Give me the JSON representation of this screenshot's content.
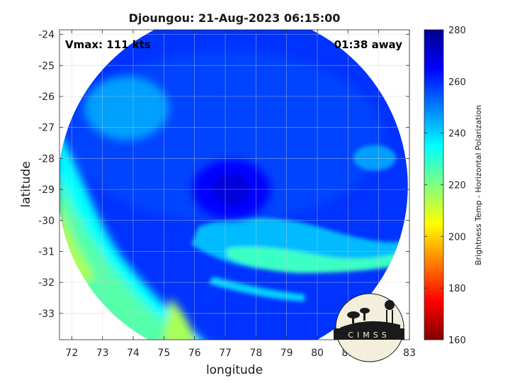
{
  "chart_data": {
    "type": "heatmap",
    "title": "Djoungou: 21-Aug-2023 06:15:00",
    "annotations": {
      "vmax": "Vmax: 111 kts",
      "time_away": "01:38 away"
    },
    "xlabel": "longitude",
    "ylabel": "latitude",
    "xlim": [
      71.6,
      83.0
    ],
    "ylim": [
      -33.85,
      -23.85
    ],
    "x_ticks": [
      72,
      73,
      74,
      75,
      76,
      77,
      78,
      79,
      80,
      81,
      82,
      83
    ],
    "y_ticks": [
      -24,
      -25,
      -26,
      -27,
      -28,
      -29,
      -30,
      -31,
      -32,
      -33
    ],
    "grid": true,
    "colorbar": {
      "label": "Brightness Temp - Horizontal Polarization",
      "range": [
        160,
        280
      ],
      "ticks": [
        160,
        180,
        200,
        220,
        240,
        260,
        280
      ],
      "colormap": "jet",
      "colors": [
        "#7f0000",
        "#ff0000",
        "#ff7f00",
        "#ffff00",
        "#7fff7f",
        "#00ffff",
        "#007fff",
        "#0000ff",
        "#00008f"
      ]
    },
    "swath": {
      "center_lon": 77.25,
      "center_lat": -28.9,
      "radius_deg": 5.7
    },
    "field_features": {
      "eye": {
        "lon": 77.2,
        "lat": -29.0,
        "value": 270
      },
      "background": 259,
      "outer_west_band": {
        "value": 215
      },
      "southeast_rainband": {
        "value": 235
      }
    },
    "logo": "CIMSS"
  }
}
